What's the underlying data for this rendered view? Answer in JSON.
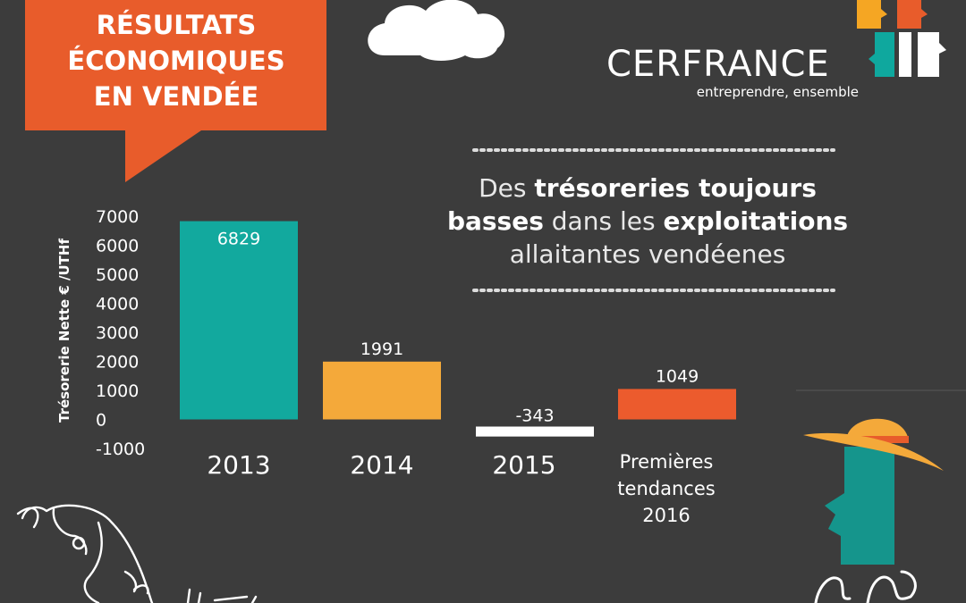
{
  "banner": {
    "lines": [
      "RÉSULTATS",
      "ÉCONOMIQUES",
      "EN VENDÉE"
    ],
    "color": "#e85c2b"
  },
  "logo": {
    "name": "CERFRANCE",
    "tagline": "entreprendre, ensemble",
    "colors": [
      "#f5a623",
      "#e85c2b",
      "#0fa89e",
      "#ffffff"
    ]
  },
  "headline": {
    "line1": [
      {
        "t": "Des ",
        "b": false
      },
      {
        "t": "trésoreries toujours",
        "b": true
      }
    ],
    "line2": [
      {
        "t": "basses",
        "b": true
      },
      {
        "t": " dans les ",
        "b": false
      },
      {
        "t": "exploitations",
        "b": true
      }
    ],
    "line3": [
      {
        "t": "allaitantes vendéenes",
        "b": false
      }
    ]
  },
  "chart_data": {
    "type": "bar",
    "title": "",
    "xlabel": "",
    "ylabel": "Trésorerie Nette € /UTHf",
    "ylim": [
      -1000,
      7000
    ],
    "yticks": [
      7000,
      6000,
      5000,
      4000,
      3000,
      2000,
      1000,
      0,
      -1000
    ],
    "grid": false,
    "categories": [
      {
        "lines": [
          "2013"
        ]
      },
      {
        "lines": [
          "2014"
        ]
      },
      {
        "lines": [
          "2015"
        ]
      },
      {
        "lines": [
          "Premières",
          "tendances",
          "2016"
        ]
      }
    ],
    "values": [
      6829,
      1991,
      -343,
      1049
    ],
    "value_labels": [
      "6829",
      "1991",
      "-343",
      "1049"
    ],
    "colors": [
      "#12a99e",
      "#f4a93a",
      "#ffffff",
      "#ec5b2d"
    ]
  }
}
